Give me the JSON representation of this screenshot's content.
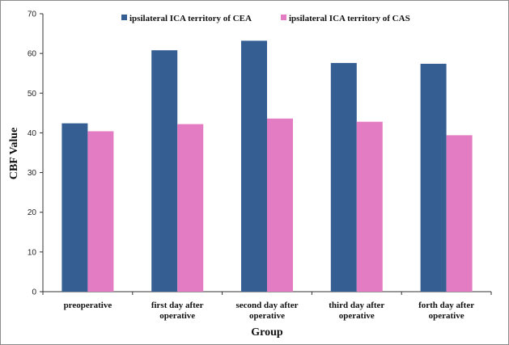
{
  "chart_data": {
    "type": "bar",
    "title": "",
    "xlabel": "Group",
    "ylabel": "CBF  Value",
    "ylim": [
      0,
      70
    ],
    "yticks": [
      0,
      10,
      20,
      30,
      40,
      50,
      60,
      70
    ],
    "grid": false,
    "legend_position": "top",
    "categories": [
      [
        "preoperative"
      ],
      [
        "first day after",
        "operative"
      ],
      [
        "second day after",
        "operative"
      ],
      [
        "third day after",
        "operative"
      ],
      [
        "forth day after",
        "operative"
      ]
    ],
    "series": [
      {
        "name": "ipsilateral ICA territory of CEA",
        "color": "#355f93",
        "values": [
          42.4,
          60.8,
          63.2,
          57.6,
          57.4
        ]
      },
      {
        "name": "ipsilateral ICA territory of CAS",
        "color": "#e47cc4",
        "values": [
          40.4,
          42.2,
          43.6,
          42.8,
          39.4
        ]
      }
    ]
  }
}
